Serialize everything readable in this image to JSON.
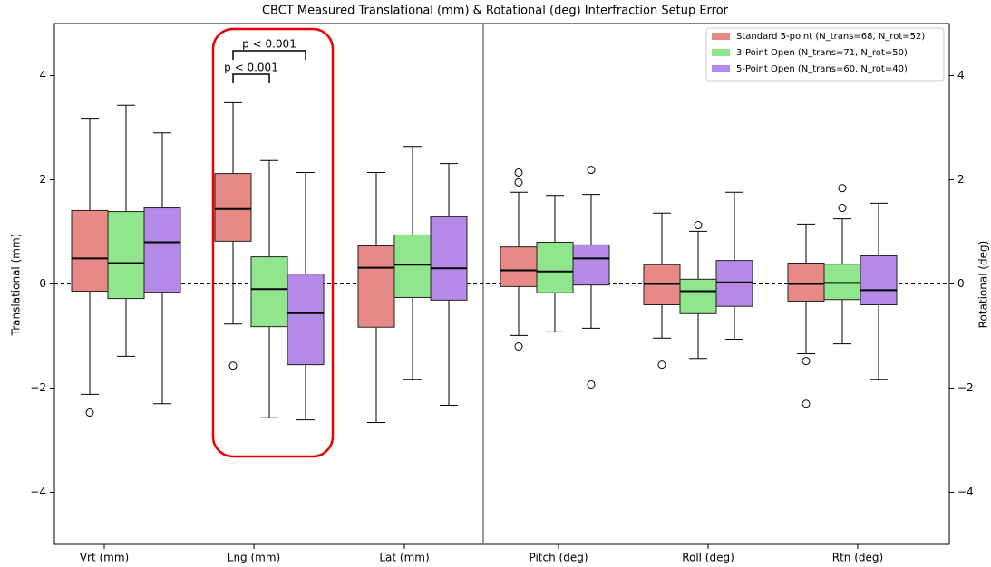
{
  "chart_data": {
    "type": "box",
    "title": "CBCT Measured Translational (mm) & Rotational (deg) Interfraction Setup Error",
    "ylabel": "Translational (mm)",
    "y2label": "Rotational (deg)",
    "categories": [
      "Vrt (mm)",
      "Lng (mm)",
      "Lat (mm)",
      "Pitch (deg)",
      "Roll (deg)",
      "Rtn (deg)"
    ],
    "ylim": [
      -5,
      5
    ],
    "yticks": [
      {
        "value": -4,
        "label": "−4"
      },
      {
        "value": -2,
        "label": "−2"
      },
      0,
      2,
      4
    ],
    "y2lim": [
      -5,
      5
    ],
    "y2ticks": [
      {
        "value": -4,
        "label": "−4"
      },
      {
        "value": -2,
        "label": "−2"
      },
      0,
      2,
      4
    ],
    "hline": 0,
    "legend": "upper right",
    "series": [
      {
        "name": "Standard 5-point (N_trans=68, N_rot=52)",
        "color": "#e78a86",
        "values": [
          {
            "whislo": -2.12,
            "q1": -0.14,
            "med": 0.49,
            "q3": 1.41,
            "whishi": 3.18,
            "fliers": [
              -2.47
            ]
          },
          {
            "whislo": -0.77,
            "q1": 0.82,
            "med": 1.44,
            "q3": 2.12,
            "whishi": 3.48,
            "fliers": [
              -1.57
            ]
          },
          {
            "whislo": -2.66,
            "q1": -0.83,
            "med": 0.31,
            "q3": 0.73,
            "whishi": 2.14,
            "fliers": []
          },
          {
            "whislo": -0.99,
            "q1": -0.05,
            "med": 0.26,
            "q3": 0.71,
            "whishi": 1.76,
            "fliers": [
              2.14,
              1.95,
              -1.2
            ]
          },
          {
            "whislo": -1.04,
            "q1": -0.4,
            "med": 0,
            "q3": 0.37,
            "whishi": 1.36,
            "fliers": [
              -1.55
            ]
          },
          {
            "whislo": -1.34,
            "q1": -0.33,
            "med": 0,
            "q3": 0.4,
            "whishi": 1.15,
            "fliers": [
              -1.48,
              -2.3
            ]
          }
        ]
      },
      {
        "name": "3-Point Open (N_trans=71, N_rot=50)",
        "color": "#8fe68c",
        "values": [
          {
            "whislo": -1.39,
            "q1": -0.28,
            "med": 0.4,
            "q3": 1.39,
            "whishi": 3.43,
            "fliers": []
          },
          {
            "whislo": -2.57,
            "q1": -0.82,
            "med": -0.1,
            "q3": 0.52,
            "whishi": 2.37,
            "fliers": []
          },
          {
            "whislo": -1.83,
            "q1": -0.26,
            "med": 0.37,
            "q3": 0.94,
            "whishi": 2.64,
            "fliers": []
          },
          {
            "whislo": -0.92,
            "q1": -0.17,
            "med": 0.24,
            "q3": 0.8,
            "whishi": 1.7,
            "fliers": []
          },
          {
            "whislo": -1.43,
            "q1": -0.57,
            "med": -0.14,
            "q3": 0.09,
            "whishi": 1.01,
            "fliers": [
              1.13
            ]
          },
          {
            "whislo": -1.15,
            "q1": -0.3,
            "med": 0.02,
            "q3": 0.38,
            "whishi": 1.25,
            "fliers": [
              1.84,
              1.46
            ]
          }
        ]
      },
      {
        "name": "5-Point Open (N_trans=60, N_rot=40)",
        "color": "#b48ae6",
        "values": [
          {
            "whislo": -2.3,
            "q1": -0.16,
            "med": 0.8,
            "q3": 1.46,
            "whishi": 2.9,
            "fliers": []
          },
          {
            "whislo": -2.61,
            "q1": -1.55,
            "med": -0.56,
            "q3": 0.19,
            "whishi": 2.14,
            "fliers": []
          },
          {
            "whislo": -2.33,
            "q1": -0.31,
            "med": 0.3,
            "q3": 1.29,
            "whishi": 2.31,
            "fliers": []
          },
          {
            "whislo": -0.85,
            "q1": -0.02,
            "med": 0.49,
            "q3": 0.75,
            "whishi": 1.72,
            "fliers": [
              2.19,
              -1.93
            ]
          },
          {
            "whislo": -1.06,
            "q1": -0.43,
            "med": 0.03,
            "q3": 0.45,
            "whishi": 1.76,
            "fliers": []
          },
          {
            "whislo": -1.83,
            "q1": -0.4,
            "med": -0.12,
            "q3": 0.54,
            "whishi": 1.55,
            "fliers": []
          }
        ]
      }
    ],
    "annotations": [
      "p < 0.001",
      "p < 0.001"
    ]
  }
}
